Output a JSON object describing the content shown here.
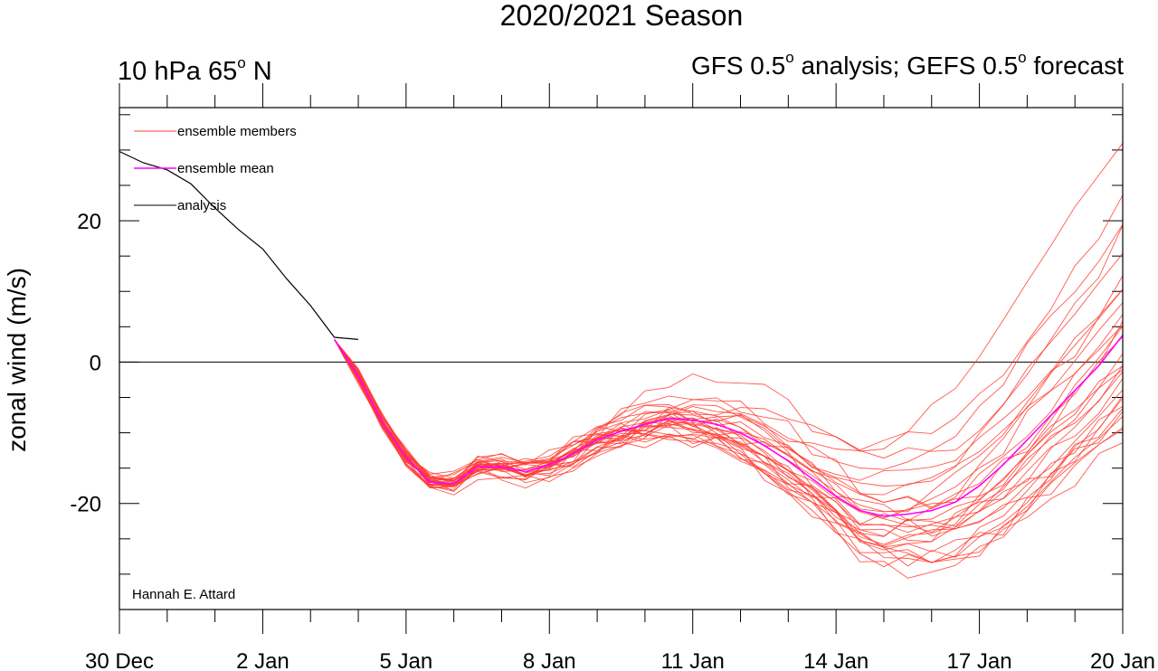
{
  "chart_data": {
    "type": "line",
    "title": "2020/2021 Season",
    "subtitle_left": {
      "text": "10 hPa 65",
      "sup": "o",
      "tail": " N"
    },
    "subtitle_right": {
      "parts": [
        {
          "t": "GFS 0.5"
        },
        {
          "sup": "o"
        },
        {
          "t": " analysis; GEFS 0.5"
        },
        {
          "sup": "o"
        },
        {
          "t": " forecast"
        }
      ]
    },
    "xlabel": "",
    "ylabel": "zonal wind (m/s)",
    "xlim": [
      0,
      21
    ],
    "ylim": [
      -35,
      36
    ],
    "x_tick_values": [
      0,
      3,
      6,
      9,
      12,
      15,
      18,
      21
    ],
    "x_tick_labels": [
      "30 Dec",
      "2 Jan",
      "5 Jan",
      "8 Jan",
      "11 Jan",
      "14 Jan",
      "17 Jan",
      "20 Jan"
    ],
    "y_tick_values": [
      -20,
      0,
      20
    ],
    "y_tick_labels": [
      "-20",
      "0",
      "20"
    ],
    "y_minor_step": 5,
    "x_minor_step": 1,
    "zero_line": true,
    "credit": "Hannah E. Attard",
    "legend": {
      "placement": "top-left",
      "entries": [
        {
          "label": "ensemble members",
          "color": "#ff3b30"
        },
        {
          "label": "ensemble mean",
          "color": "#ff00ff"
        },
        {
          "label": "analysis",
          "color": "#000000"
        }
      ]
    },
    "series": [
      {
        "name": "analysis",
        "color": "#000000",
        "x": [
          0,
          0.5,
          1,
          1.5,
          2,
          2.5,
          3,
          3.5,
          4,
          4.5,
          5
        ],
        "values": [
          29.8,
          28.2,
          27.2,
          25.2,
          21.8,
          18.7,
          16.0,
          11.8,
          8.0,
          3.5,
          3.2
        ]
      },
      {
        "name": "ensemble mean",
        "color": "#ff00ff",
        "x": [
          4.5,
          5,
          5.5,
          6,
          6.5,
          7,
          7.5,
          8,
          8.5,
          9,
          9.5,
          10,
          10.5,
          11,
          11.5,
          12,
          12.5,
          13,
          13.5,
          14,
          14.5,
          15,
          15.5,
          16,
          16.5,
          17,
          17.5,
          18,
          18.5,
          19,
          19.5,
          20,
          20.5,
          21
        ],
        "values": [
          3.2,
          -2.0,
          -8.5,
          -13.5,
          -17.0,
          -17.2,
          -14.8,
          -14.8,
          -15.5,
          -14.5,
          -13.0,
          -11.0,
          -9.8,
          -8.8,
          -8.0,
          -8.2,
          -8.8,
          -10.0,
          -11.8,
          -14.0,
          -16.5,
          -19.0,
          -21.0,
          -21.8,
          -21.5,
          -21.0,
          -19.8,
          -17.5,
          -14.5,
          -11.0,
          -7.5,
          -4.0,
          -0.5,
          3.8
        ]
      }
    ],
    "ensemble_member_count": 30,
    "ensemble_member_end_values": [
      30.8,
      23.8,
      19.2,
      17.5,
      14.8,
      11.2,
      8.0,
      6.0,
      4.5,
      3.5,
      2.4,
      1.6,
      0.6,
      -0.4,
      -1.2,
      -2.0,
      -2.8,
      -3.6,
      -4.4,
      -5.2,
      -6.0,
      -6.8,
      -7.4,
      -8.0,
      -8.6,
      -9.4,
      -10.2,
      12.4,
      9.6,
      5.0
    ]
  }
}
